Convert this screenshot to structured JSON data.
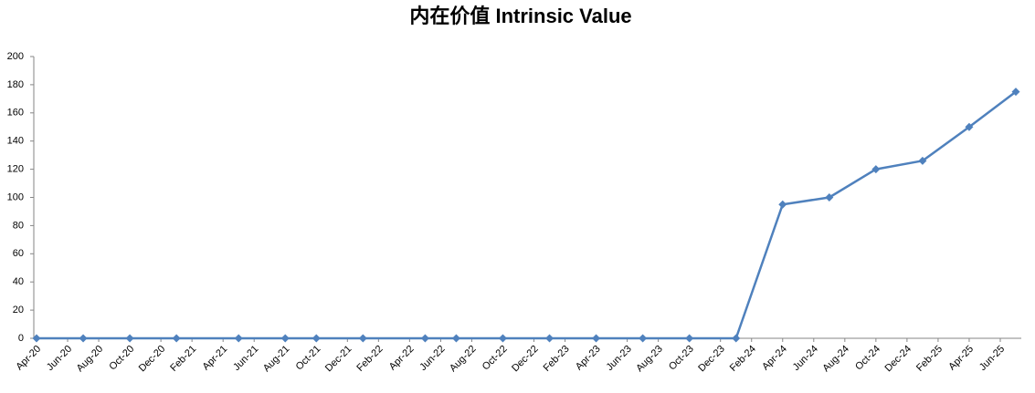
{
  "chart_data": {
    "type": "line",
    "title": "内在价值 Intrinsic Value",
    "x": [
      "Apr-20",
      "Jul-20",
      "Oct-20",
      "Jan-21",
      "May-21",
      "Aug-21",
      "Oct-21",
      "Jan-22",
      "May-22",
      "Jul-22",
      "Oct-22",
      "Jan-23",
      "Apr-23",
      "Jul-23",
      "Oct-23",
      "Jan-24",
      "Apr-24",
      "Jul-24",
      "Oct-24",
      "Jan-25",
      "Apr-25",
      "Jul-25"
    ],
    "series": [
      {
        "color": "#4f81bd",
        "values": [
          0,
          0,
          0,
          0,
          0,
          0,
          0,
          0,
          0,
          0,
          0,
          0,
          0,
          0,
          0,
          0,
          95,
          100,
          120,
          126,
          150,
          175
        ]
      }
    ],
    "xlim": [
      "Apr-20",
      "Jul-25"
    ],
    "xticks": [
      "Apr-20",
      "Jun-20",
      "Aug-20",
      "Oct-20",
      "Dec-20",
      "Feb-21",
      "Apr-21",
      "Jun-21",
      "Aug-21",
      "Oct-21",
      "Dec-21",
      "Feb-22",
      "Apr-22",
      "Jun-22",
      "Aug-22",
      "Oct-22",
      "Dec-22",
      "Feb-23",
      "Apr-23",
      "Jun-23",
      "Aug-23",
      "Oct-23",
      "Dec-23",
      "Feb-24",
      "Apr-24",
      "Jun-24",
      "Aug-24",
      "Oct-24",
      "Dec-24",
      "Feb-25",
      "Apr-25",
      "Jun-25"
    ],
    "ylim": [
      0,
      200
    ],
    "yticks": [
      0,
      20,
      40,
      60,
      80,
      100,
      120,
      140,
      160,
      180,
      200
    ],
    "grid": false
  }
}
